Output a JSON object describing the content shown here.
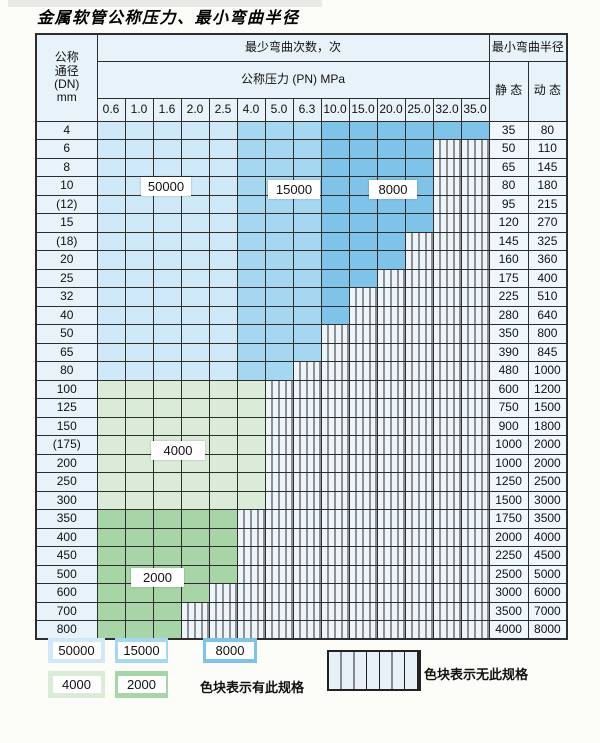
{
  "title": "金属软管公称压力、最小弯曲半径",
  "table": {
    "header": {
      "dn_lines": [
        "公称",
        "通径",
        "(DN)",
        "mm"
      ],
      "bend_cycles_label": "最少弯曲次数，次",
      "pressure_label": "公称压力 (PN) MPa",
      "radius_label": "最小弯曲半径",
      "static_label": "静 态",
      "dynamic_label": "动 态",
      "pressure_columns": [
        "0.6",
        "1.0",
        "1.6",
        "2.0",
        "2.5",
        "4.0",
        "5.0",
        "6.3",
        "10.0",
        "15.0",
        "20.0",
        "25.0",
        "32.0",
        "35.0"
      ]
    },
    "rows": [
      {
        "dn": "4",
        "static": "35",
        "dynamic": "80",
        "colored": 14,
        "band": "blue"
      },
      {
        "dn": "6",
        "static": "50",
        "dynamic": "110",
        "colored": 12,
        "band": "blue"
      },
      {
        "dn": "8",
        "static": "65",
        "dynamic": "145",
        "colored": 12,
        "band": "blue"
      },
      {
        "dn": "10",
        "static": "80",
        "dynamic": "180",
        "colored": 12,
        "band": "blue"
      },
      {
        "dn": "(12)",
        "static": "95",
        "dynamic": "215",
        "colored": 12,
        "band": "blue"
      },
      {
        "dn": "15",
        "static": "120",
        "dynamic": "270",
        "colored": 12,
        "band": "blue"
      },
      {
        "dn": "(18)",
        "static": "145",
        "dynamic": "325",
        "colored": 11,
        "band": "blue"
      },
      {
        "dn": "20",
        "static": "160",
        "dynamic": "360",
        "colored": 11,
        "band": "blue"
      },
      {
        "dn": "25",
        "static": "175",
        "dynamic": "400",
        "colored": 10,
        "band": "blue"
      },
      {
        "dn": "32",
        "static": "225",
        "dynamic": "510",
        "colored": 9,
        "band": "blue"
      },
      {
        "dn": "40",
        "static": "280",
        "dynamic": "640",
        "colored": 9,
        "band": "blue"
      },
      {
        "dn": "50",
        "static": "350",
        "dynamic": "800",
        "colored": 8,
        "band": "blue"
      },
      {
        "dn": "65",
        "static": "390",
        "dynamic": "845",
        "colored": 8,
        "band": "blue"
      },
      {
        "dn": "80",
        "static": "480",
        "dynamic": "1000",
        "colored": 7,
        "band": "blue"
      },
      {
        "dn": "100",
        "static": "600",
        "dynamic": "1200",
        "colored": 6,
        "band": "green4000"
      },
      {
        "dn": "125",
        "static": "750",
        "dynamic": "1500",
        "colored": 6,
        "band": "green4000"
      },
      {
        "dn": "150",
        "static": "900",
        "dynamic": "1800",
        "colored": 6,
        "band": "green4000"
      },
      {
        "dn": "(175)",
        "static": "1000",
        "dynamic": "2000",
        "colored": 6,
        "band": "green4000"
      },
      {
        "dn": "200",
        "static": "1000",
        "dynamic": "2000",
        "colored": 6,
        "band": "green4000"
      },
      {
        "dn": "250",
        "static": "1250",
        "dynamic": "2500",
        "colored": 6,
        "band": "green4000"
      },
      {
        "dn": "300",
        "static": "1500",
        "dynamic": "3000",
        "colored": 6,
        "band": "green4000"
      },
      {
        "dn": "350",
        "static": "1750",
        "dynamic": "3500",
        "colored": 5,
        "band": "green2000"
      },
      {
        "dn": "400",
        "static": "2000",
        "dynamic": "4000",
        "colored": 5,
        "band": "green2000"
      },
      {
        "dn": "450",
        "static": "2250",
        "dynamic": "4500",
        "colored": 5,
        "band": "green2000"
      },
      {
        "dn": "500",
        "static": "2500",
        "dynamic": "5000",
        "colored": 5,
        "band": "green2000"
      },
      {
        "dn": "600",
        "static": "3000",
        "dynamic": "6000",
        "colored": 4,
        "band": "green2000"
      },
      {
        "dn": "700",
        "static": "3500",
        "dynamic": "7000",
        "colored": 3,
        "band": "green2000"
      },
      {
        "dn": "800",
        "static": "4000",
        "dynamic": "8000",
        "colored": 3,
        "band": "green2000"
      }
    ]
  },
  "overlay_labels": [
    "50000",
    "15000",
    "8000",
    "4000",
    "2000"
  ],
  "legend": {
    "available_swatches": [
      {
        "label": "50000",
        "color": "#cfe9f8"
      },
      {
        "label": "15000",
        "color": "#a6d7f1"
      },
      {
        "label": "8000",
        "color": "#7fc3e9"
      },
      {
        "label": "4000",
        "color": "#daecd8"
      },
      {
        "label": "2000",
        "color": "#a8d5a7"
      }
    ],
    "available_note": "色块表示有此规格",
    "unavailable_note": "色块表示无此规格"
  },
  "colors": {
    "band_50000": "#cfe9f8",
    "band_15000": "#a6d7f1",
    "band_8000": "#7fc3e9",
    "band_4000": "#daecd8",
    "band_2000": "#a8d5a7",
    "header_cell_bg": "#e7f2fb",
    "value_cell_bg": "#eff7fc",
    "striped_cell_bg": "#edf4fa",
    "grid_line": "#2e2e2e",
    "page_bg": "#fcfcf8"
  }
}
